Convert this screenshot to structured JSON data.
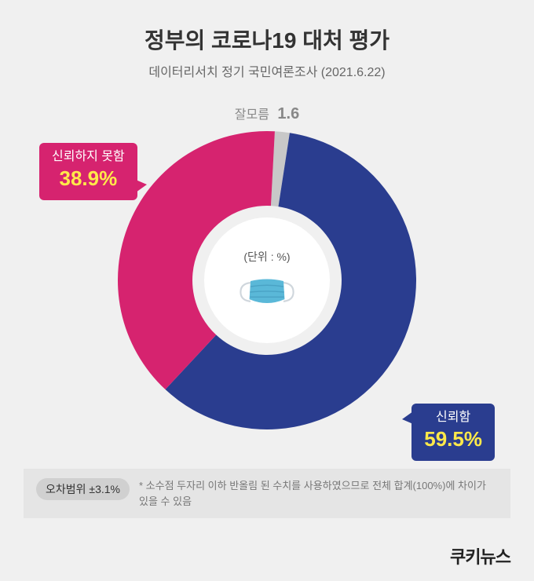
{
  "title": "정부의 코로나19 대처 평가",
  "subtitle": "데이터리서치 정기 국민여론조사 (2021.6.22)",
  "chart": {
    "type": "donut",
    "unit_label": "(단위 : %)",
    "background_color": "#f0f0f0",
    "segments": [
      {
        "key": "trust",
        "label": "신뢰함",
        "value": 59.5,
        "color": "#2a3d8f",
        "callout_bg": "#2a3d8f",
        "callout_pct_color": "#ffe94a",
        "callout_label_color": "#ffffff"
      },
      {
        "key": "distrust",
        "label": "신뢰하지 못함",
        "value": 38.9,
        "color": "#d6236f",
        "callout_bg": "#d6236f",
        "callout_pct_color": "#ffe94a",
        "callout_label_color": "#ffffff"
      },
      {
        "key": "unknown",
        "label": "잘모름",
        "value": 1.6,
        "color": "#c8c8c8"
      }
    ],
    "donut_outer_radius": 190,
    "donut_inner_radius": 95,
    "center_bg": "#ffffff",
    "start_angle_deg": -87
  },
  "mask_icon": {
    "body_color": "#5ab8d8",
    "fold_color": "#4aa3c5",
    "strap_color": "#cfd6dc"
  },
  "footer": {
    "margin_label": "오차범위 ±3.1%",
    "footnote": "* 소수점 두자리 이하 반올림 된 수치를 사용하였으므로 전체 합계(100%)에 차이가 있을 수 있음"
  },
  "logo": "쿠키뉴스"
}
